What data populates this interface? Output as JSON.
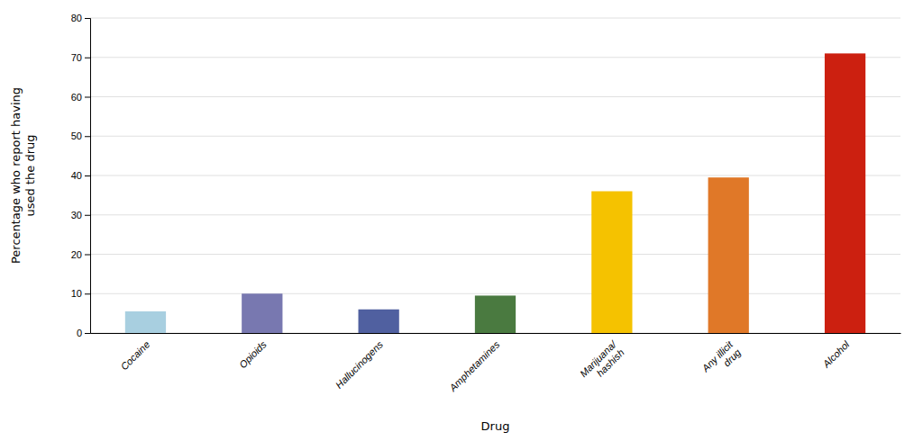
{
  "chart_data": {
    "type": "bar",
    "categories": [
      "Cocaine",
      "Opioids",
      "Hallucinogens",
      "Amphetamines",
      "Marijuana/\nhashish",
      "Any illicit\ndrug",
      "Alcohol"
    ],
    "values": [
      5.5,
      10.0,
      6.0,
      9.5,
      36.0,
      39.5,
      71.0
    ],
    "colors": [
      "#a8cfe0",
      "#7878b0",
      "#5060a0",
      "#4a7a40",
      "#f5c200",
      "#e07828",
      "#cc2010"
    ],
    "xlabel": "Drug",
    "ylabel": "Percentage who report having\nused the drug",
    "ylim": [
      0,
      80
    ],
    "yticks": [
      0,
      10,
      20,
      30,
      40,
      50,
      60,
      70,
      80
    ],
    "grid": true
  }
}
